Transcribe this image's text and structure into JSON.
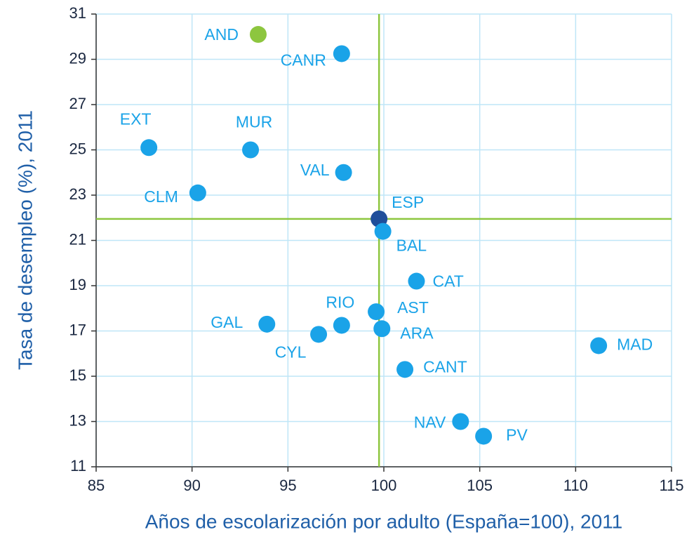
{
  "chart_data": {
    "type": "scatter",
    "x_label": "Años de escolarización por adulto (España=100), 2011",
    "y_label": "Tasa de desempleo (%), 2011",
    "point_labels": [
      "AND",
      "CANR",
      "EXT",
      "MUR",
      "VAL",
      "CLM",
      "ESP",
      "BAL",
      "CAT",
      "AST",
      "RIO",
      "ARA",
      "GAL",
      "CYL",
      "CANT",
      "MAD",
      "NAV",
      "PV"
    ],
    "x": [
      93.45,
      97.8,
      87.75,
      93.05,
      97.9,
      90.3,
      99.75,
      99.95,
      101.7,
      99.6,
      97.8,
      99.9,
      93.9,
      96.6,
      101.1,
      111.2,
      104.0,
      105.2
    ],
    "y": [
      30.1,
      29.25,
      25.1,
      25.0,
      24.0,
      23.1,
      21.95,
      21.4,
      19.2,
      17.85,
      17.25,
      17.1,
      17.3,
      16.85,
      15.3,
      16.35,
      13.0,
      12.35
    ],
    "colors": [
      "#8dc63f",
      "#1aa3e8",
      "#1aa3e8",
      "#1aa3e8",
      "#1aa3e8",
      "#1aa3e8",
      "#1f4e9a",
      "#1aa3e8",
      "#1aa3e8",
      "#1aa3e8",
      "#1aa3e8",
      "#1aa3e8",
      "#1aa3e8",
      "#1aa3e8",
      "#1aa3e8",
      "#1aa3e8",
      "#1aa3e8",
      "#1aa3e8"
    ],
    "reference_lines": {
      "x": 99.75,
      "y": 21.95,
      "color": "#8dc63f"
    },
    "xlim": [
      85,
      115
    ],
    "xticks": [
      85,
      90,
      95,
      100,
      105,
      110,
      115
    ],
    "ylim": [
      11,
      31
    ],
    "yticks": [
      11,
      13,
      15,
      17,
      19,
      21,
      23,
      25,
      27,
      29,
      31
    ],
    "grid": true,
    "grid_color": "#bfe6f7"
  }
}
